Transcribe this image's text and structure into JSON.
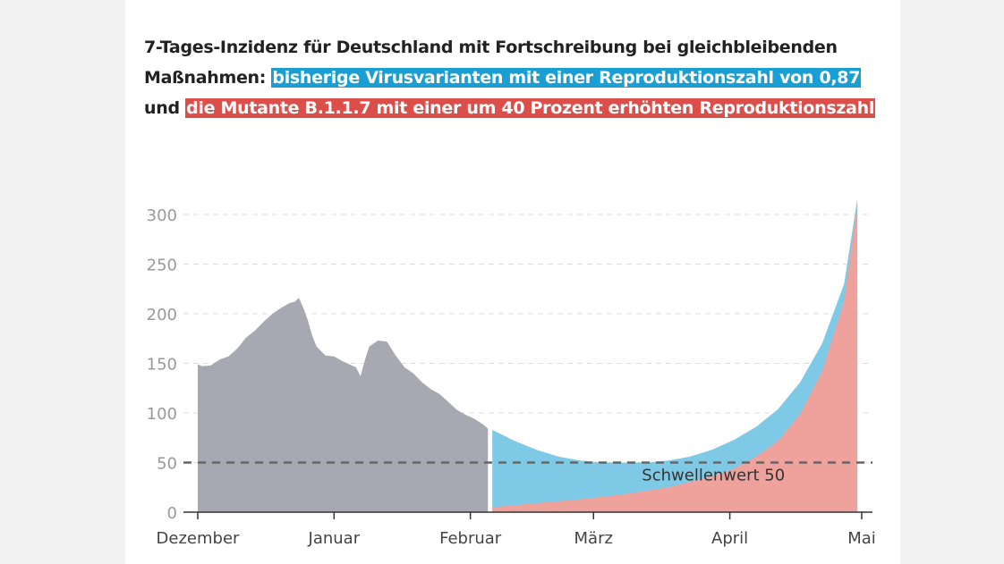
{
  "title": {
    "part1": "7-Tages-Inzidenz für Deutschland mit Fortschreibung bei gleichbleibenden Maßnahmen: ",
    "blue_text": "bisherige Virusvarianten mit einer Reproduktionszahl von 0,87",
    "middle": " und ",
    "red_text": "die Mutante B.1.1.7 mit einer um 40 Prozent erhöhten Reproduktionszahl"
  },
  "colors": {
    "history": "#a8a8b3",
    "blue": "#7ec9e6",
    "red": "#eea29b",
    "title_blue": "#1a9fd4",
    "title_red": "#dc4e4a"
  },
  "chart_data": {
    "type": "area",
    "ylim": [
      0,
      320
    ],
    "yticks": [
      0,
      50,
      100,
      150,
      200,
      250,
      300
    ],
    "xlim": [
      "2020-12-01",
      "2021-05-01"
    ],
    "xticks": [
      {
        "date": "2020-12-01",
        "label": "Dezember"
      },
      {
        "date": "2021-01-01",
        "label": "Januar"
      },
      {
        "date": "2021-02-01",
        "label": "Februar"
      },
      {
        "date": "2021-03-01",
        "label": "März"
      },
      {
        "date": "2021-04-01",
        "label": "April"
      },
      {
        "date": "2021-05-01",
        "label": "Mai"
      }
    ],
    "threshold": {
      "value": 50,
      "label": "Schwellenwert 50"
    },
    "series": [
      {
        "key": "history",
        "points": [
          [
            "2020-12-01",
            149
          ],
          [
            "2020-12-02",
            147
          ],
          [
            "2020-12-04",
            148
          ],
          [
            "2020-12-06",
            154
          ],
          [
            "2020-12-08",
            157
          ],
          [
            "2020-12-10",
            165
          ],
          [
            "2020-12-12",
            176
          ],
          [
            "2020-12-14",
            183
          ],
          [
            "2020-12-16",
            192
          ],
          [
            "2020-12-18",
            200
          ],
          [
            "2020-12-20",
            206
          ],
          [
            "2020-12-22",
            211
          ],
          [
            "2020-12-23",
            212
          ],
          [
            "2020-12-24",
            216
          ],
          [
            "2020-12-25",
            206
          ],
          [
            "2020-12-26",
            194
          ],
          [
            "2020-12-27",
            178
          ],
          [
            "2020-12-28",
            167
          ],
          [
            "2020-12-30",
            158
          ],
          [
            "2021-01-01",
            157
          ],
          [
            "2021-01-03",
            152
          ],
          [
            "2021-01-05",
            148
          ],
          [
            "2021-01-06",
            146
          ],
          [
            "2021-01-07",
            137
          ],
          [
            "2021-01-08",
            153
          ],
          [
            "2021-01-09",
            167
          ],
          [
            "2021-01-11",
            173
          ],
          [
            "2021-01-13",
            172
          ],
          [
            "2021-01-15",
            158
          ],
          [
            "2021-01-17",
            146
          ],
          [
            "2021-01-19",
            140
          ],
          [
            "2021-01-21",
            131
          ],
          [
            "2021-01-23",
            124
          ],
          [
            "2021-01-25",
            119
          ],
          [
            "2021-01-27",
            111
          ],
          [
            "2021-01-29",
            103
          ],
          [
            "2021-01-31",
            98
          ],
          [
            "2021-02-02",
            94
          ],
          [
            "2021-02-04",
            88
          ],
          [
            "2021-02-05",
            84
          ]
        ]
      },
      {
        "key": "bisherige",
        "points": [
          [
            "2021-02-06",
            83
          ],
          [
            "2021-02-11",
            72
          ],
          [
            "2021-02-16",
            63
          ],
          [
            "2021-02-21",
            56
          ],
          [
            "2021-02-26",
            52
          ],
          [
            "2021-03-03",
            50
          ],
          [
            "2021-03-08",
            50
          ],
          [
            "2021-03-13",
            50
          ],
          [
            "2021-03-18",
            52
          ],
          [
            "2021-03-23",
            56
          ],
          [
            "2021-03-28",
            63
          ],
          [
            "2021-04-02",
            73
          ],
          [
            "2021-04-07",
            86
          ],
          [
            "2021-04-12",
            104
          ],
          [
            "2021-04-17",
            131
          ],
          [
            "2021-04-22",
            170
          ],
          [
            "2021-04-27",
            230
          ],
          [
            "2021-04-30",
            316
          ]
        ]
      },
      {
        "key": "mutante",
        "points": [
          [
            "2021-02-06",
            5
          ],
          [
            "2021-02-16",
            9
          ],
          [
            "2021-02-26",
            13
          ],
          [
            "2021-03-08",
            18
          ],
          [
            "2021-03-18",
            25
          ],
          [
            "2021-03-28",
            36
          ],
          [
            "2021-04-02",
            44
          ],
          [
            "2021-04-07",
            56
          ],
          [
            "2021-04-12",
            72
          ],
          [
            "2021-04-17",
            99
          ],
          [
            "2021-04-22",
            142
          ],
          [
            "2021-04-27",
            213
          ],
          [
            "2021-04-30",
            310
          ]
        ]
      }
    ]
  }
}
